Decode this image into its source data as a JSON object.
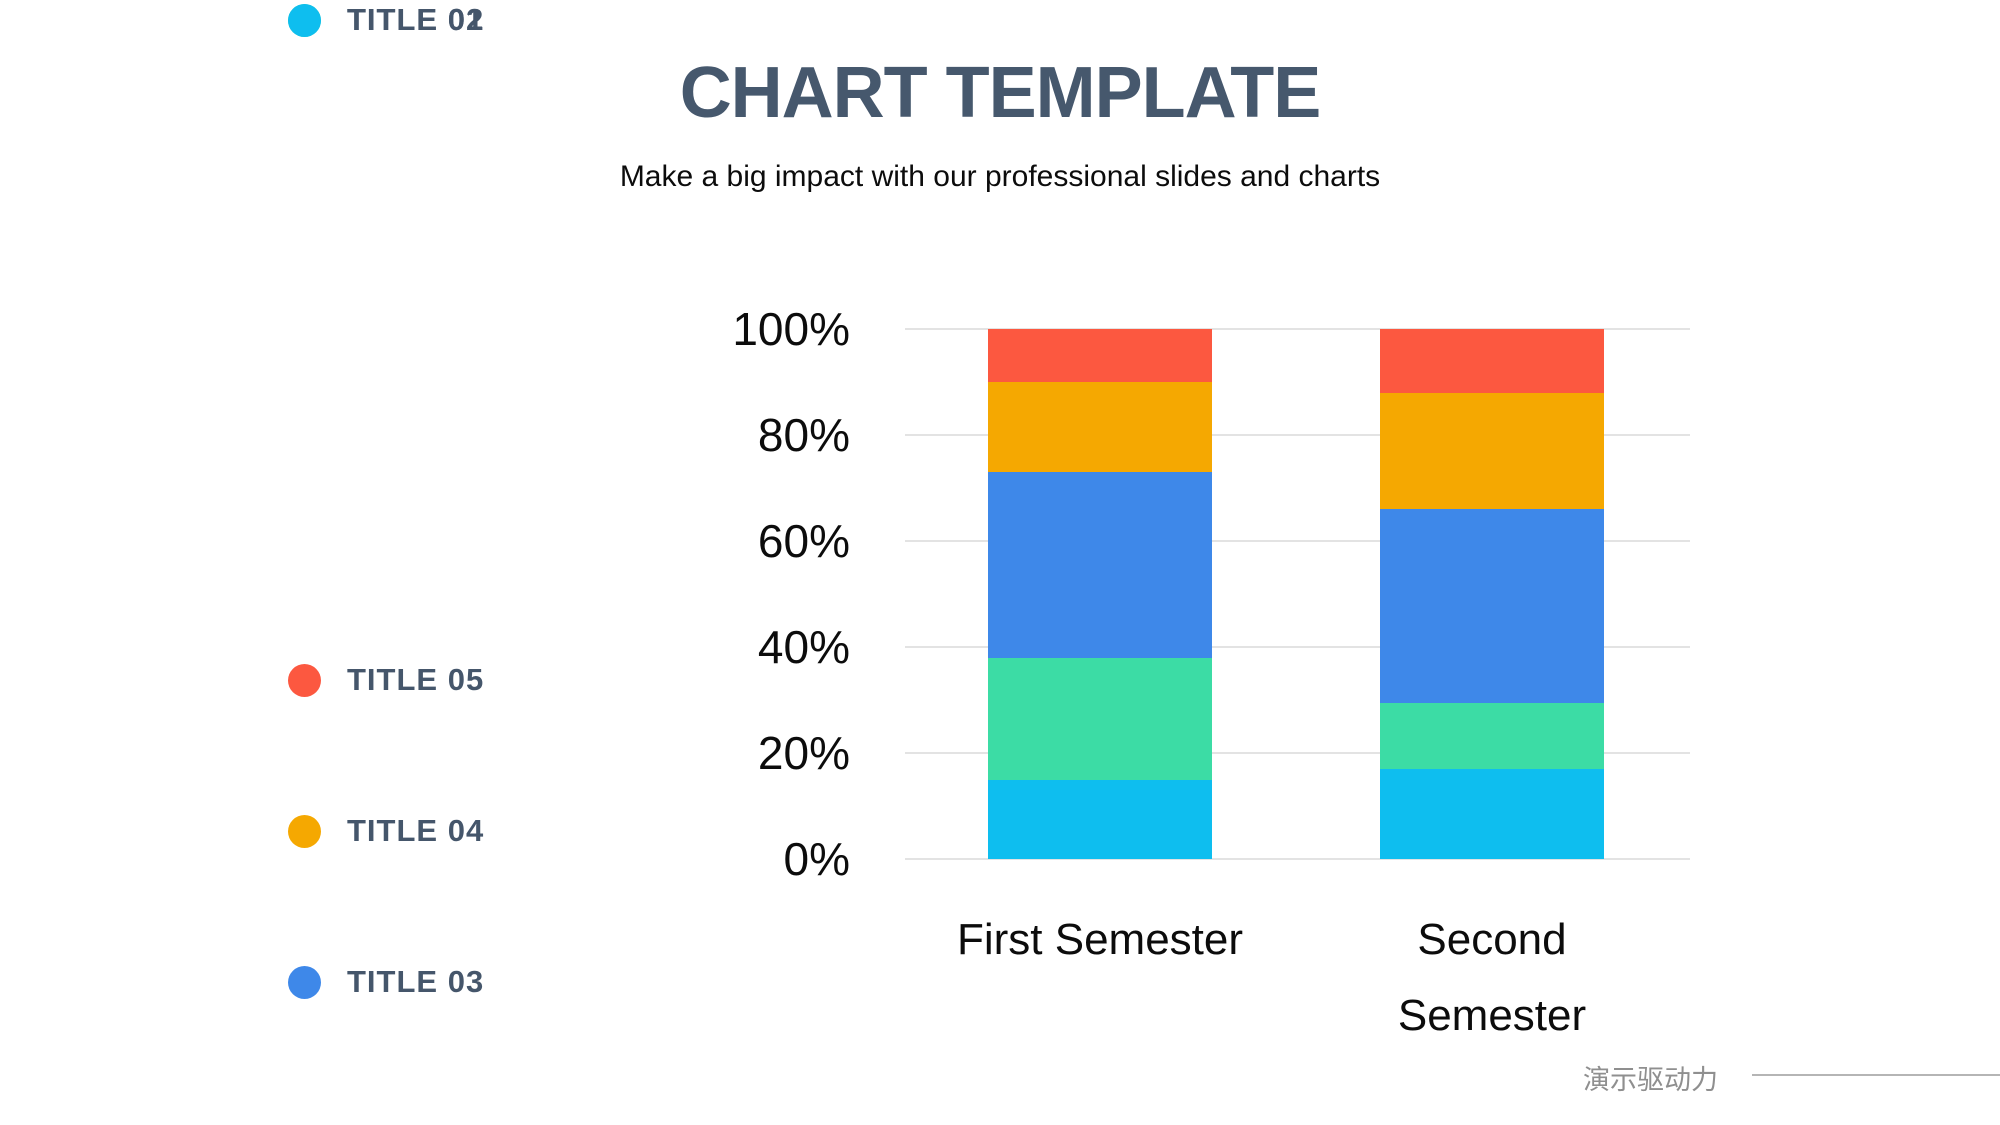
{
  "slide": {
    "title": "CHART TEMPLATE",
    "subtitle": "Make a big impact with our professional slides and charts"
  },
  "legend": {
    "position": "left",
    "items": [
      {
        "label": "TITLE 05",
        "color": "#fc5840"
      },
      {
        "label": "TITLE 04",
        "color": "#f5a801"
      },
      {
        "label": "TITLE 03",
        "color": "#3e88e9"
      },
      {
        "label": "TITLE 02",
        "color": "#3cdca5"
      },
      {
        "label": "TITLE 01",
        "color": "#0ebeef"
      }
    ]
  },
  "axis": {
    "ticks": [
      "100%",
      "80%",
      "60%",
      "40%",
      "20%",
      "0%"
    ]
  },
  "chart_data": {
    "type": "bar",
    "stacked": true,
    "percent_stacked": true,
    "title": "CHART TEMPLATE",
    "xlabel": "",
    "ylabel": "",
    "ylim": [
      0,
      100
    ],
    "yticks": [
      "0%",
      "20%",
      "40%",
      "60%",
      "80%",
      "100%"
    ],
    "grid": true,
    "legend_position": "left",
    "categories": [
      "First Semester",
      "Second Semester"
    ],
    "series": [
      {
        "name": "TITLE 01",
        "color": "#0ebeef",
        "values": [
          15,
          17
        ]
      },
      {
        "name": "TITLE 02",
        "color": "#3cdca5",
        "values": [
          23,
          12.5
        ]
      },
      {
        "name": "TITLE 03",
        "color": "#3e88e9",
        "values": [
          35,
          36.5
        ]
      },
      {
        "name": "TITLE 04",
        "color": "#f5a801",
        "values": [
          17,
          22
        ]
      },
      {
        "name": "TITLE 05",
        "color": "#fc5840",
        "values": [
          10,
          12
        ]
      }
    ]
  },
  "footer": {
    "brand": "演示驱动力"
  },
  "colors": {
    "heading": "#46586d",
    "legend_text": "#45566b",
    "axis_text": "#0c0c0c",
    "gridline": "#e3e3e3",
    "footer_text": "#8f8f8f",
    "footer_line": "#b5b5b5",
    "background": "#ffffff"
  }
}
